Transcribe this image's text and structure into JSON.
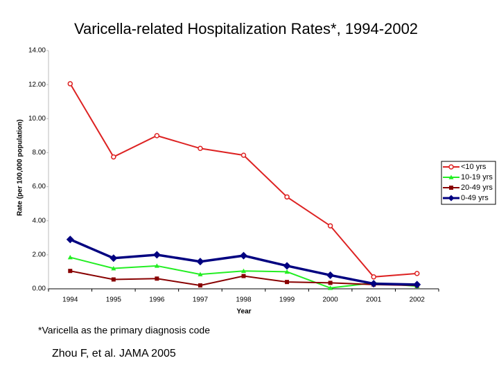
{
  "chart_data": {
    "type": "line",
    "title": "Varicella-related Hospitalization Rates*, 1994-2002",
    "x_label": "Year",
    "y_label": "Rate (per 100,000 population)",
    "categories": [
      "1994",
      "1995",
      "1996",
      "1997",
      "1998",
      "1999",
      "2000",
      "2001",
      "2002"
    ],
    "series": [
      {
        "name": "<10 yrs",
        "color": "#dd2222",
        "marker": "circle",
        "values": [
          12.05,
          7.75,
          9.0,
          8.25,
          7.85,
          5.4,
          3.7,
          0.7,
          0.9
        ]
      },
      {
        "name": "10-19 yrs",
        "color": "#22ee22",
        "marker": "triangle",
        "values": [
          1.85,
          1.2,
          1.35,
          0.85,
          1.05,
          1.0,
          0.05,
          0.35,
          0.15
        ]
      },
      {
        "name": "20-49 yrs",
        "color": "#880000",
        "marker": "square",
        "values": [
          1.05,
          0.55,
          0.6,
          0.2,
          0.75,
          0.4,
          0.35,
          0.25,
          0.2
        ]
      },
      {
        "name": "0-49 yrs",
        "color": "#000080",
        "marker": "diamond",
        "values": [
          2.9,
          1.8,
          2.0,
          1.6,
          1.95,
          1.35,
          0.8,
          0.3,
          0.25
        ]
      }
    ],
    "ylim": [
      0,
      14
    ],
    "yticks": [
      {
        "value": 0,
        "label": "0.00"
      },
      {
        "value": 2,
        "label": "2.00"
      },
      {
        "value": 4,
        "label": "4.00"
      },
      {
        "value": 6,
        "label": "6.00"
      },
      {
        "value": 8,
        "label": "8.00"
      },
      {
        "value": 10,
        "label": "10.00"
      },
      {
        "value": 12,
        "label": "12.00"
      },
      {
        "value": 14,
        "label": "14.00"
      }
    ],
    "grid": false,
    "legend_position": "right",
    "annotations": [
      "*Varicella as the primary diagnosis code",
      "Zhou F, et al.  JAMA 2005"
    ]
  }
}
